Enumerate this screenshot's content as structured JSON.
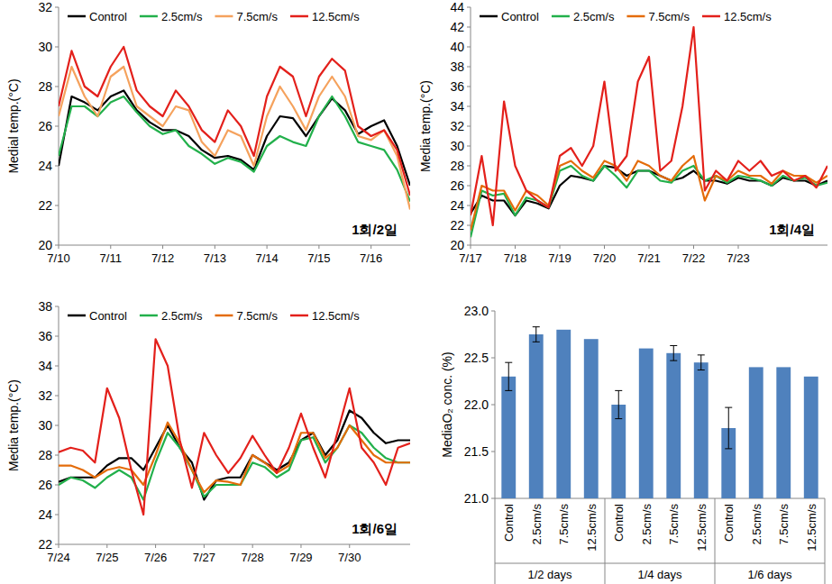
{
  "chart_data": [
    {
      "type": "line",
      "y_label": "Medial temp.(°C)",
      "annotation": "1회/2일",
      "x": [
        10,
        10.25,
        10.5,
        10.75,
        11,
        11.25,
        11.5,
        11.75,
        12,
        12.25,
        12.5,
        12.75,
        13,
        13.25,
        13.5,
        13.75,
        14,
        14.25,
        14.5,
        14.75,
        15,
        15.25,
        15.5,
        15.75,
        16,
        16.25,
        16.5,
        16.75
      ],
      "xlim": [
        10,
        16.75
      ],
      "xticks": [
        {
          "value": 10,
          "label": "7/10"
        },
        {
          "value": 11,
          "label": "7/11"
        },
        {
          "value": 12,
          "label": "7/12"
        },
        {
          "value": 13,
          "label": "7/13"
        },
        {
          "value": 14,
          "label": "7/14"
        },
        {
          "value": 15,
          "label": "7/15"
        },
        {
          "value": 16,
          "label": "7/16"
        }
      ],
      "ylim": [
        20,
        32
      ],
      "yticks": [
        20,
        22,
        24,
        26,
        28,
        30,
        32
      ],
      "grid": false,
      "legend": "top",
      "series": [
        {
          "name": "Control",
          "color": "#000000",
          "values": [
            24.0,
            27.5,
            27.2,
            26.8,
            27.5,
            27.8,
            26.8,
            26.2,
            25.8,
            25.8,
            25.5,
            24.8,
            24.4,
            24.5,
            24.3,
            23.8,
            25.5,
            26.5,
            26.4,
            25.5,
            26.5,
            27.4,
            26.8,
            25.6,
            26.0,
            26.3,
            25.0,
            23.0
          ]
        },
        {
          "name": "2.5cm/s",
          "color": "#22b04b",
          "values": [
            24.5,
            27.0,
            27.0,
            26.5,
            27.2,
            27.5,
            26.7,
            26.0,
            25.6,
            25.8,
            25.0,
            24.6,
            24.1,
            24.4,
            24.2,
            23.7,
            25.0,
            25.5,
            25.2,
            25.0,
            26.5,
            27.5,
            26.5,
            25.2,
            25.0,
            24.8,
            23.8,
            22.2
          ]
        },
        {
          "name": "7.5cm/s",
          "color": "#f5a25d",
          "values": [
            26.5,
            29.0,
            27.5,
            26.5,
            28.5,
            29.0,
            27.0,
            26.5,
            26.0,
            27.0,
            26.8,
            25.2,
            24.5,
            25.8,
            25.5,
            24.0,
            26.5,
            28.0,
            27.0,
            25.8,
            27.5,
            28.5,
            27.5,
            25.5,
            25.3,
            25.8,
            24.5,
            21.8
          ]
        },
        {
          "name": "12.5cm/s",
          "color": "#e3201b",
          "values": [
            27.0,
            29.8,
            28.0,
            27.5,
            29.0,
            30.0,
            27.8,
            27.0,
            26.5,
            27.8,
            27.0,
            25.8,
            25.2,
            26.8,
            26.0,
            24.5,
            27.5,
            29.0,
            28.5,
            26.5,
            28.5,
            29.4,
            28.8,
            26.0,
            25.5,
            25.8,
            24.8,
            22.5
          ]
        }
      ]
    },
    {
      "type": "line",
      "y_label": "Media temp.(°C)",
      "annotation": "1회/4일",
      "x": [
        17,
        17.25,
        17.5,
        17.75,
        18,
        18.25,
        18.5,
        18.75,
        19,
        19.25,
        19.5,
        19.75,
        20,
        20.25,
        20.5,
        20.75,
        21,
        21.25,
        21.5,
        21.75,
        22,
        22.25,
        22.5,
        22.75,
        23,
        23.25,
        23.5,
        23.75,
        24,
        24.25,
        24.5,
        24.75,
        25
      ],
      "xlim": [
        17,
        25
      ],
      "xticks": [
        {
          "value": 17,
          "label": "7/17"
        },
        {
          "value": 18,
          "label": "7/18"
        },
        {
          "value": 19,
          "label": "7/19"
        },
        {
          "value": 20,
          "label": "7/20"
        },
        {
          "value": 21,
          "label": "7/21"
        },
        {
          "value": 22,
          "label": "7/22"
        },
        {
          "value": 23,
          "label": "7/23"
        }
      ],
      "ylim": [
        20,
        44
      ],
      "yticks": [
        20,
        22,
        24,
        26,
        28,
        30,
        32,
        34,
        36,
        38,
        40,
        42,
        44
      ],
      "grid": false,
      "legend": "top",
      "series": [
        {
          "name": "Control",
          "color": "#000000",
          "values": [
            23.2,
            25.0,
            24.5,
            24.5,
            23.0,
            24.5,
            24.2,
            23.7,
            26.0,
            27.0,
            26.8,
            26.5,
            28.0,
            27.8,
            27.0,
            27.5,
            27.5,
            27.0,
            26.5,
            26.8,
            27.5,
            26.5,
            26.5,
            26.2,
            26.8,
            26.5,
            26.5,
            26.0,
            26.8,
            26.5,
            26.5,
            26.0,
            26.5
          ]
        },
        {
          "name": "2.5cm/s",
          "color": "#22b04b",
          "values": [
            20.8,
            25.5,
            25.0,
            25.2,
            23.0,
            24.8,
            24.5,
            23.8,
            27.5,
            28.0,
            27.0,
            26.5,
            28.0,
            27.0,
            25.8,
            27.5,
            27.5,
            26.5,
            26.3,
            27.5,
            28.0,
            26.5,
            27.0,
            26.3,
            27.0,
            26.8,
            26.5,
            26.0,
            27.0,
            26.5,
            26.8,
            26.0,
            26.3
          ]
        },
        {
          "name": "7.5cm/s",
          "color": "#e46c0a",
          "values": [
            21.5,
            26.0,
            25.5,
            25.5,
            23.5,
            25.5,
            25.0,
            24.0,
            28.0,
            28.5,
            27.5,
            26.8,
            28.5,
            28.0,
            26.5,
            28.5,
            28.0,
            27.0,
            26.5,
            28.0,
            29.0,
            24.5,
            27.0,
            26.5,
            27.5,
            27.0,
            27.0,
            26.2,
            27.5,
            27.0,
            27.0,
            26.3,
            27.0
          ]
        },
        {
          "name": "12.5cm/s",
          "color": "#e3201b",
          "values": [
            23.0,
            29.0,
            22.0,
            34.5,
            28.0,
            25.5,
            24.5,
            23.8,
            29.0,
            29.8,
            28.0,
            30.0,
            36.5,
            27.5,
            29.0,
            36.5,
            39.0,
            27.5,
            28.5,
            34.0,
            42.0,
            25.5,
            27.5,
            26.5,
            28.5,
            27.5,
            28.5,
            27.0,
            27.5,
            26.5,
            27.0,
            25.8,
            28.0
          ]
        }
      ]
    },
    {
      "type": "line",
      "y_label": "Media temp.(°C)",
      "annotation": "1회/6일",
      "x": [
        24,
        24.25,
        24.5,
        24.75,
        25,
        25.25,
        25.5,
        25.75,
        26,
        26.25,
        26.5,
        26.75,
        27,
        27.25,
        27.5,
        27.75,
        28,
        28.25,
        28.5,
        28.75,
        29,
        29.25,
        29.5,
        29.75,
        30,
        30.25,
        30.5,
        30.75,
        31,
        31.25
      ],
      "xlim": [
        24,
        31.25
      ],
      "xticks": [
        {
          "value": 24,
          "label": "7/24"
        },
        {
          "value": 25,
          "label": "7/25"
        },
        {
          "value": 26,
          "label": "7/26"
        },
        {
          "value": 27,
          "label": "7/27"
        },
        {
          "value": 28,
          "label": "7/28"
        },
        {
          "value": 29,
          "label": "7/29"
        },
        {
          "value": 30,
          "label": "7/30"
        }
      ],
      "ylim": [
        22,
        38
      ],
      "yticks": [
        22,
        24,
        26,
        28,
        30,
        32,
        34,
        36,
        38
      ],
      "grid": false,
      "legend": "top",
      "series": [
        {
          "name": "Control",
          "color": "#000000",
          "values": [
            26.2,
            26.5,
            26.5,
            26.5,
            27.3,
            27.8,
            27.8,
            27.0,
            28.5,
            30.0,
            28.5,
            27.5,
            25.0,
            26.3,
            26.5,
            26.5,
            28.0,
            27.5,
            27.0,
            27.5,
            29.0,
            29.5,
            28.0,
            29.0,
            31.0,
            30.5,
            29.5,
            28.8,
            29.0,
            29.0
          ]
        },
        {
          "name": "2.5cm/s",
          "color": "#22b04b",
          "values": [
            26.0,
            26.5,
            26.3,
            25.8,
            26.5,
            27.0,
            26.5,
            25.0,
            27.5,
            29.5,
            28.5,
            27.0,
            25.2,
            26.0,
            26.0,
            26.0,
            27.5,
            27.2,
            26.5,
            27.0,
            29.0,
            29.2,
            27.5,
            28.5,
            30.0,
            29.5,
            28.5,
            27.8,
            27.5,
            27.5
          ]
        },
        {
          "name": "7.5cm/s",
          "color": "#e46c0a",
          "values": [
            27.3,
            27.3,
            27.0,
            26.5,
            27.0,
            27.2,
            27.0,
            26.0,
            28.0,
            30.2,
            28.8,
            27.0,
            25.5,
            26.3,
            26.2,
            26.0,
            28.0,
            27.5,
            26.8,
            27.3,
            29.5,
            29.5,
            27.8,
            28.5,
            30.0,
            29.0,
            28.0,
            27.5,
            27.5,
            27.5
          ]
        },
        {
          "name": "12.5cm/s",
          "color": "#e3201b",
          "values": [
            28.2,
            28.5,
            28.3,
            27.5,
            32.5,
            30.5,
            27.0,
            24.0,
            35.8,
            34.0,
            29.0,
            25.8,
            29.5,
            28.0,
            26.8,
            27.8,
            29.3,
            28.0,
            26.8,
            28.5,
            30.8,
            28.5,
            26.5,
            29.5,
            32.5,
            28.5,
            27.5,
            26.0,
            28.5,
            28.8
          ]
        }
      ]
    },
    {
      "type": "bar",
      "y_label": "MediaO₂ conc. (%)",
      "categories": [
        "Control",
        "2.5cm/s",
        "7.5cm/s",
        "12.5cm/s",
        "Control",
        "2.5cm/s",
        "7.5cm/s",
        "12.5cm/s",
        "Control",
        "2.5cm/s",
        "7.5cm/s",
        "12.5cm/s"
      ],
      "groups": [
        "1/2 days",
        "1/4 days",
        "1/6 days"
      ],
      "values": [
        22.3,
        22.75,
        22.8,
        22.7,
        22.0,
        22.6,
        22.55,
        22.45,
        21.75,
        22.4,
        22.4,
        22.3
      ],
      "errors": [
        0.15,
        0.08,
        0,
        0,
        0.15,
        0,
        0.08,
        0.08,
        0.22,
        0,
        0,
        0
      ],
      "color": "#4f81bd",
      "ylim": [
        21,
        23
      ],
      "yticks": [
        {
          "value": 21,
          "label": "21.0"
        },
        {
          "value": 21.5,
          "label": "21.5"
        },
        {
          "value": 22,
          "label": "22.0"
        },
        {
          "value": 22.5,
          "label": "22.5"
        },
        {
          "value": 23,
          "label": "23.0"
        }
      ],
      "grid": false
    }
  ]
}
